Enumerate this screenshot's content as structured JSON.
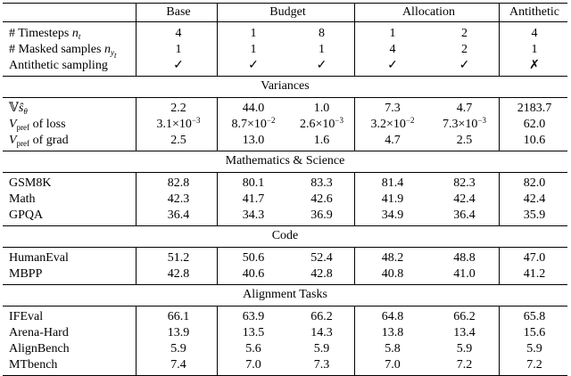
{
  "header": {
    "base": "Base",
    "budget": "Budget",
    "allocation": "Allocation",
    "antithetic": "Antithetic"
  },
  "config_rows": [
    {
      "label": "# Timesteps n_t",
      "label_parts": [
        "# Timesteps ",
        "n",
        "t"
      ],
      "values": [
        "4",
        "1",
        "8",
        "1",
        "2",
        "4"
      ]
    },
    {
      "label": "# Masked samples n_{y_t}",
      "label_parts": [
        "# Masked samples ",
        "n",
        "y",
        "t"
      ],
      "values": [
        "1",
        "1",
        "1",
        "4",
        "2",
        "1"
      ]
    },
    {
      "label": "Antithetic sampling",
      "values": [
        "✓",
        "✓",
        "✓",
        "✓",
        "✓",
        "✗"
      ]
    }
  ],
  "sections": [
    {
      "title": "Variances",
      "rows": [
        {
          "label": "𝕍ŝθ",
          "values": [
            "2.2",
            "44.0",
            "1.0",
            "7.3",
            "4.7",
            "2183.7"
          ]
        },
        {
          "label": "V_pref of loss",
          "values": [
            "3.1×10⁻³",
            "8.7×10⁻²",
            "2.6×10⁻³",
            "3.2×10⁻²",
            "7.3×10⁻³",
            "62.0"
          ]
        },
        {
          "label": "V_pref of grad",
          "values": [
            "2.5",
            "13.0",
            "1.6",
            "4.7",
            "2.5",
            "10.6"
          ]
        }
      ]
    },
    {
      "title": "Mathematics & Science",
      "rows": [
        {
          "label": "GSM8K",
          "values": [
            "82.8",
            "80.1",
            "83.3",
            "81.4",
            "82.3",
            "82.0"
          ]
        },
        {
          "label": "Math",
          "values": [
            "42.3",
            "41.7",
            "42.6",
            "41.9",
            "42.4",
            "42.4"
          ]
        },
        {
          "label": "GPQA",
          "values": [
            "36.4",
            "34.3",
            "36.9",
            "34.9",
            "36.4",
            "35.9"
          ]
        }
      ]
    },
    {
      "title": "Code",
      "rows": [
        {
          "label": "HumanEval",
          "values": [
            "51.2",
            "50.6",
            "52.4",
            "48.2",
            "48.8",
            "47.0"
          ]
        },
        {
          "label": "MBPP",
          "values": [
            "42.8",
            "40.6",
            "42.8",
            "40.8",
            "41.0",
            "41.2"
          ]
        }
      ]
    },
    {
      "title": "Alignment Tasks",
      "rows": [
        {
          "label": "IFEval",
          "values": [
            "66.1",
            "63.9",
            "66.2",
            "64.8",
            "66.2",
            "65.8"
          ]
        },
        {
          "label": "Arena-Hard",
          "values": [
            "13.9",
            "13.5",
            "14.3",
            "13.8",
            "13.4",
            "15.6"
          ]
        },
        {
          "label": "AlignBench",
          "values": [
            "5.9",
            "5.6",
            "5.9",
            "5.8",
            "5.9",
            "5.9"
          ]
        },
        {
          "label": "MTbench",
          "values": [
            "7.4",
            "7.0",
            "7.3",
            "7.0",
            "7.2",
            "7.2"
          ]
        }
      ]
    }
  ]
}
